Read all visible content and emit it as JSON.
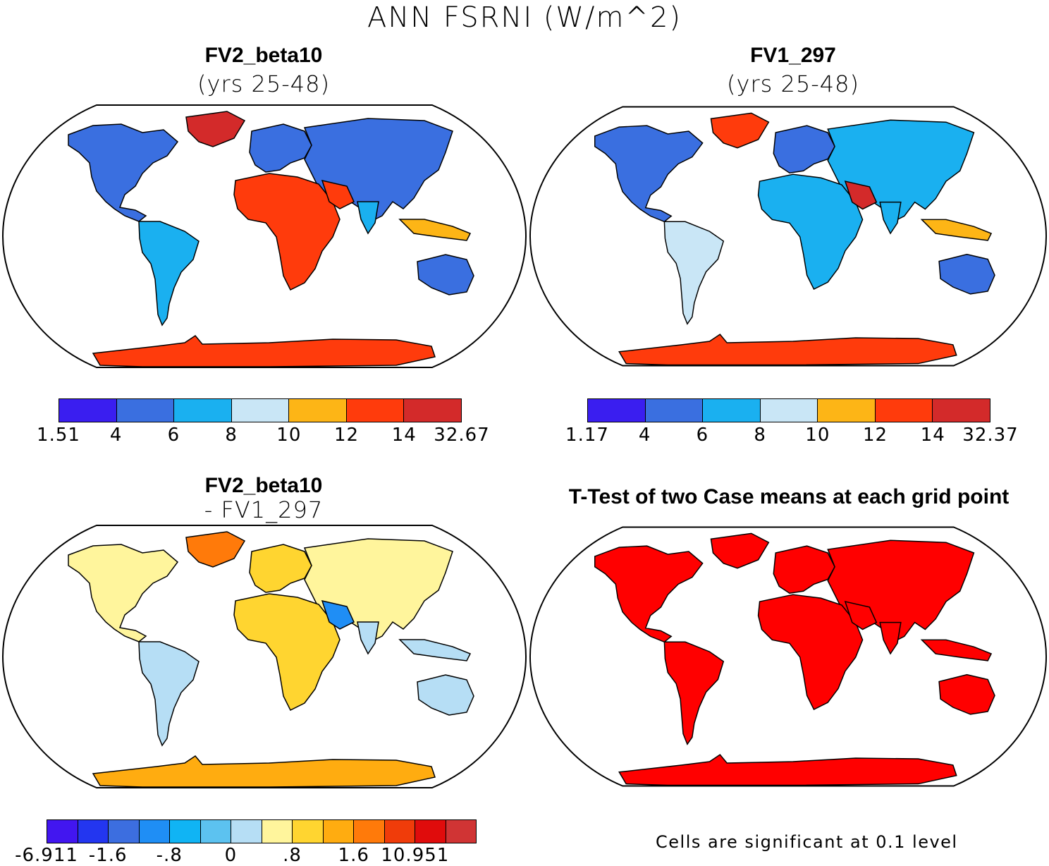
{
  "title": "ANN FSRNI (W/m^2)",
  "panels": [
    {
      "title": "FV2_beta10",
      "subtitle": "(yrs 25-48)",
      "colors": [
        "#3a1ef0",
        "#3a6fe0",
        "#1ab0f0",
        "#c9e6f6",
        "#fdb516",
        "#ff3b0c",
        "#d32a2a"
      ],
      "ticks": [
        "1.51",
        "4",
        "6",
        "8",
        "10",
        "12",
        "14",
        "32.67"
      ]
    },
    {
      "title": "FV1_297",
      "subtitle": "(yrs 25-48)",
      "colors": [
        "#3a1ef0",
        "#3a6fe0",
        "#1ab0f0",
        "#c9e6f6",
        "#fdb516",
        "#ff3b0c",
        "#d32a2a"
      ],
      "ticks": [
        "1.17",
        "4",
        "6",
        "8",
        "10",
        "12",
        "14",
        "32.37"
      ]
    },
    {
      "title": "FV2_beta10",
      "subtitle": "- FV1_297",
      "colors": [
        "#4216f0",
        "#2336f0",
        "#3c6ee0",
        "#1f8ef5",
        "#10b4f4",
        "#5cc2f0",
        "#b6def5",
        "#fff59c",
        "#ffd530",
        "#ffac10",
        "#ff7a0a",
        "#f03c0a",
        "#e00c0c",
        "#d03434"
      ],
      "ticks": [
        "-6.911",
        "-1.6",
        "-.8",
        "0",
        ".8",
        "1.6",
        "10.951"
      ]
    },
    {
      "title": "T-Test of two Case means at each grid point",
      "note": "Cells are significant at 0.1 level"
    }
  ]
}
